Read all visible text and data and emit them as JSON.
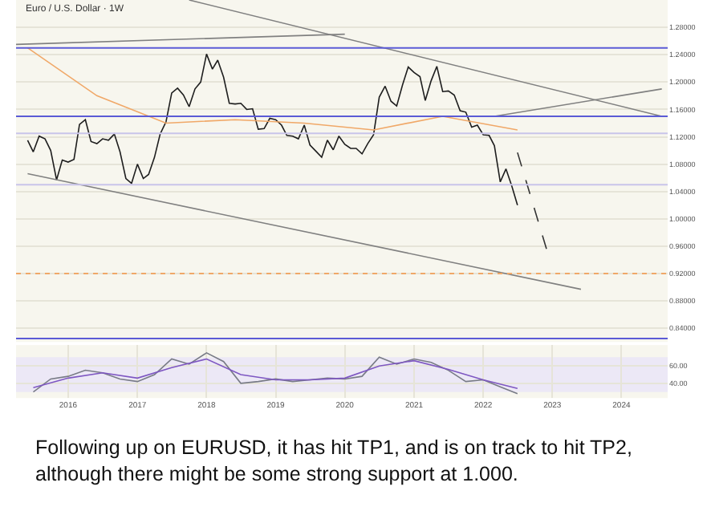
{
  "chart_data": [
    {
      "type": "line",
      "title": "Euro / U.S. Dollar · 1W",
      "series": [
        {
          "color": "#1e1e1e",
          "x": [
            "2015-06",
            "2015-07",
            "2015-08",
            "2015-09",
            "2015-10",
            "2015-11",
            "2015-12",
            "2016-01",
            "2016-02",
            "2016-03",
            "2016-04",
            "2016-05",
            "2016-06",
            "2016-07",
            "2016-08",
            "2016-09",
            "2016-10",
            "2016-11",
            "2016-12",
            "2017-01",
            "2017-02",
            "2017-03",
            "2017-04",
            "2017-05",
            "2017-06",
            "2017-07",
            "2017-08",
            "2017-09",
            "2017-10",
            "2017-11",
            "2017-12",
            "2018-01",
            "2018-02",
            "2018-03",
            "2018-04",
            "2018-05",
            "2018-06",
            "2018-07",
            "2018-08",
            "2018-09",
            "2018-10",
            "2018-11",
            "2018-12",
            "2019-01",
            "2019-02",
            "2019-03",
            "2019-04",
            "2019-05",
            "2019-06",
            "2019-07",
            "2019-08",
            "2019-09",
            "2019-10",
            "2019-11",
            "2019-12",
            "2020-01",
            "2020-02",
            "2020-03",
            "2020-04",
            "2020-05",
            "2020-06",
            "2020-07",
            "2020-08",
            "2020-09",
            "2020-10",
            "2020-11",
            "2020-12",
            "2021-01",
            "2021-02",
            "2021-03",
            "2021-04",
            "2021-05",
            "2021-06",
            "2021-07",
            "2021-08",
            "2021-09",
            "2021-10",
            "2021-11",
            "2021-12",
            "2022-01",
            "2022-02",
            "2022-03",
            "2022-04",
            "2022-05",
            "2022-06",
            "2022-07"
          ],
          "values": [
            1.115,
            1.098,
            1.121,
            1.117,
            1.1,
            1.057,
            1.086,
            1.083,
            1.087,
            1.138,
            1.145,
            1.113,
            1.11,
            1.117,
            1.115,
            1.124,
            1.098,
            1.059,
            1.052,
            1.08,
            1.059,
            1.065,
            1.09,
            1.124,
            1.142,
            1.184,
            1.191,
            1.181,
            1.164,
            1.19,
            1.2,
            1.241,
            1.219,
            1.232,
            1.207,
            1.169,
            1.168,
            1.169,
            1.16,
            1.161,
            1.131,
            1.132,
            1.147,
            1.145,
            1.137,
            1.122,
            1.121,
            1.117,
            1.137,
            1.108,
            1.099,
            1.09,
            1.115,
            1.101,
            1.121,
            1.109,
            1.103,
            1.103,
            1.095,
            1.11,
            1.123,
            1.178,
            1.194,
            1.172,
            1.165,
            1.196,
            1.222,
            1.214,
            1.208,
            1.173,
            1.202,
            1.223,
            1.186,
            1.187,
            1.181,
            1.158,
            1.156,
            1.134,
            1.137,
            1.123,
            1.122,
            1.107,
            1.054,
            1.073,
            1.048,
            1.02
          ]
        },
        {
          "color": "#f0a868",
          "x": [
            "2015-06",
            "2016-06",
            "2017-06",
            "2018-06",
            "2019-06",
            "2020-06",
            "2021-06",
            "2022-07"
          ],
          "values": [
            1.25,
            1.18,
            1.14,
            1.145,
            1.14,
            1.13,
            1.15,
            1.13
          ]
        },
        {
          "color": "#808080",
          "x": [
            "2017-10",
            "2024-08"
          ],
          "values": [
            1.32,
            1.15
          ]
        },
        {
          "color": "#808080",
          "x": [
            "2015-04",
            "2020-01"
          ],
          "values": [
            1.255,
            1.27
          ]
        },
        {
          "color": "#808080",
          "x": [
            "2022-03",
            "2024-08"
          ],
          "values": [
            1.15,
            1.19
          ]
        },
        {
          "color": "#808080",
          "x": [
            "2015-06",
            "2023-06"
          ],
          "values": [
            1.066,
            0.897
          ]
        },
        {
          "color": "#333333",
          "line_style": "dashed",
          "x": [
            "2022-07",
            "2022-12"
          ],
          "values": [
            1.097,
            0.956
          ]
        }
      ],
      "xlim": [
        "2015-04",
        "2024-09"
      ],
      "ylim": [
        0.82,
        1.32
      ],
      "yticks": [
        {
          "value": 0.84,
          "label": "0.84000"
        },
        {
          "value": 0.88,
          "label": "0.88000"
        },
        {
          "value": 0.92,
          "label": "0.92000"
        },
        {
          "value": 0.96,
          "label": "0.96000"
        },
        {
          "value": 1.0,
          "label": "1.00000"
        },
        {
          "value": 1.04,
          "label": "1.04000"
        },
        {
          "value": 1.08,
          "label": "1.08000"
        },
        {
          "value": 1.12,
          "label": "1.12000"
        },
        {
          "value": 1.16,
          "label": "1.16000"
        },
        {
          "value": 1.2,
          "label": "1.20000"
        },
        {
          "value": 1.24,
          "label": "1.24000"
        },
        {
          "value": 1.28,
          "label": "1.28000"
        }
      ],
      "ref_lines": [
        {
          "axis": "y",
          "value": 1.25,
          "color": "#5b5bd6"
        },
        {
          "axis": "y",
          "value": 1.15,
          "color": "#5b5bd6"
        },
        {
          "axis": "y",
          "value": 1.125,
          "color": "#c9c4ea"
        },
        {
          "axis": "y",
          "value": 1.05,
          "color": "#c9c4ea"
        },
        {
          "axis": "y",
          "value": 0.92,
          "color": "#f0a868",
          "line_style": "dotted"
        },
        {
          "axis": "y",
          "value": 0.825,
          "color": "#5b5bd6"
        }
      ],
      "grid": true,
      "tick_labels": "y",
      "annotations": [
        "Following up on EURUSD, it has hit TP1, and is on track to hit TP2, although there might be some strong support at 1.000."
      ]
    },
    {
      "type": "line",
      "series": [
        {
          "color": "#787b86",
          "x": [
            "2015-07",
            "2015-10",
            "2016-01",
            "2016-04",
            "2016-07",
            "2016-10",
            "2017-01",
            "2017-04",
            "2017-07",
            "2017-10",
            "2018-01",
            "2018-04",
            "2018-07",
            "2018-10",
            "2019-01",
            "2019-04",
            "2019-07",
            "2019-10",
            "2020-01",
            "2020-04",
            "2020-07",
            "2020-10",
            "2021-01",
            "2021-04",
            "2021-07",
            "2021-10",
            "2022-01",
            "2022-04",
            "2022-07"
          ],
          "values": [
            30,
            45,
            48,
            55,
            52,
            45,
            42,
            50,
            68,
            62,
            75,
            65,
            40,
            42,
            45,
            42,
            44,
            46,
            45,
            48,
            70,
            62,
            68,
            64,
            55,
            42,
            44,
            36,
            28
          ]
        },
        {
          "color": "#7e57c2",
          "x": [
            "2015-07",
            "2016-01",
            "2016-07",
            "2017-01",
            "2017-07",
            "2018-01",
            "2018-07",
            "2019-01",
            "2019-07",
            "2020-01",
            "2020-07",
            "2021-01",
            "2021-07",
            "2022-01",
            "2022-07"
          ],
          "values": [
            35,
            46,
            52,
            46,
            58,
            68,
            50,
            44,
            44,
            46,
            60,
            66,
            56,
            44,
            34
          ]
        }
      ],
      "xlim": [
        "2015-04",
        "2024-09"
      ],
      "xticks": [
        {
          "value": "2016",
          "label": "2016"
        },
        {
          "value": "2017",
          "label": "2017"
        },
        {
          "value": "2018",
          "label": "2018"
        },
        {
          "value": "2019",
          "label": "2019"
        },
        {
          "value": "2020",
          "label": "2020"
        },
        {
          "value": "2021",
          "label": "2021"
        },
        {
          "value": "2022",
          "label": "2022"
        },
        {
          "value": "2023",
          "label": "2023"
        },
        {
          "value": "2024",
          "label": "2024"
        }
      ],
      "ylim": [
        23,
        84
      ],
      "yticks": [
        {
          "value": 40,
          "label": "40.00"
        },
        {
          "value": 60,
          "label": "60.00"
        }
      ],
      "bands": [
        {
          "axis": "y",
          "from": 30,
          "to": 70,
          "color": "#ece8f6"
        }
      ],
      "grid": true
    }
  ]
}
